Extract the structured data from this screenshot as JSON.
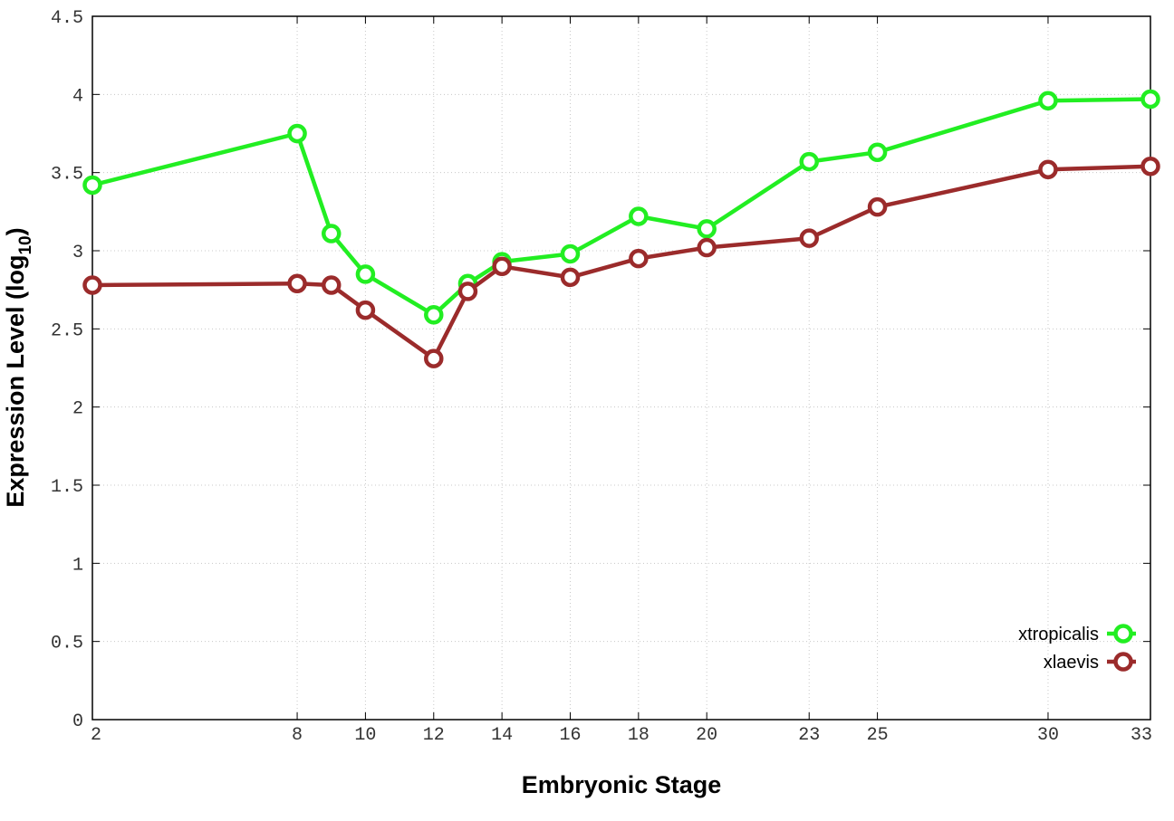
{
  "chart_data": {
    "type": "line",
    "title": "",
    "xlabel": "Embryonic Stage",
    "ylabel_main": "Expression Level (log",
    "ylabel_sub": "10",
    "ylabel_close": ")",
    "x_ticks": [
      2,
      8,
      10,
      12,
      14,
      16,
      18,
      20,
      23,
      25,
      30,
      33
    ],
    "y_ticks": [
      "0",
      "0.5",
      "1",
      "1.5",
      "2",
      "2.5",
      "3",
      "3.5",
      "4",
      "4.5"
    ],
    "ylim": [
      0,
      4.5
    ],
    "grid": true,
    "legend_position": "bottom-right",
    "series": [
      {
        "name": "xtropicalis",
        "color": "#22ee22",
        "points": [
          {
            "x": 2,
            "y": 3.42
          },
          {
            "x": 8,
            "y": 3.75
          },
          {
            "x": 9,
            "y": 3.11
          },
          {
            "x": 10,
            "y": 2.85
          },
          {
            "x": 12,
            "y": 2.59
          },
          {
            "x": 13,
            "y": 2.79
          },
          {
            "x": 14,
            "y": 2.93
          },
          {
            "x": 16,
            "y": 2.98
          },
          {
            "x": 18,
            "y": 3.22
          },
          {
            "x": 20,
            "y": 3.14
          },
          {
            "x": 23,
            "y": 3.57
          },
          {
            "x": 25,
            "y": 3.63
          },
          {
            "x": 30,
            "y": 3.96
          },
          {
            "x": 33,
            "y": 3.97
          }
        ]
      },
      {
        "name": "xlaevis",
        "color": "#9b2b2b",
        "points": [
          {
            "x": 2,
            "y": 2.78
          },
          {
            "x": 8,
            "y": 2.79
          },
          {
            "x": 9,
            "y": 2.78
          },
          {
            "x": 10,
            "y": 2.62
          },
          {
            "x": 12,
            "y": 2.31
          },
          {
            "x": 13,
            "y": 2.74
          },
          {
            "x": 14,
            "y": 2.9
          },
          {
            "x": 16,
            "y": 2.83
          },
          {
            "x": 18,
            "y": 2.95
          },
          {
            "x": 20,
            "y": 3.02
          },
          {
            "x": 23,
            "y": 3.08
          },
          {
            "x": 25,
            "y": 3.28
          },
          {
            "x": 30,
            "y": 3.52
          },
          {
            "x": 33,
            "y": 3.54
          }
        ]
      }
    ]
  }
}
